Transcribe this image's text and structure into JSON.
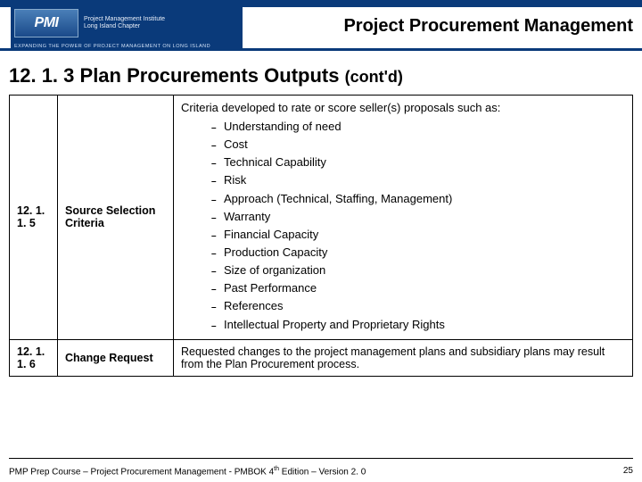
{
  "header": {
    "pmi_abbrev": "PMI",
    "org_line1": "Project Management Institute",
    "org_line2": "Long Island Chapter",
    "tagline": "EXPANDING THE POWER OF PROJECT MANAGEMENT ON LONG ISLAND",
    "page_title": "Project Procurement Management",
    "brand_color": "#0a3a7a"
  },
  "section": {
    "number": "12. 1. 3",
    "title": "Plan Procurements Outputs",
    "contd": "(cont'd)"
  },
  "rows": [
    {
      "num": "12. 1. 1. 5",
      "name": "Source Selection Criteria",
      "intro": "Criteria developed to rate or score seller(s) proposals such as:",
      "criteria": [
        "Understanding of need",
        "Cost",
        "Technical Capability",
        "Risk",
        "Approach (Technical, Staffing, Management)",
        "Warranty",
        "Financial Capacity",
        "Production Capacity",
        "Size of organization",
        "Past Performance",
        "References",
        "Intellectual Property and Proprietary Rights"
      ]
    },
    {
      "num": "12. 1. 1. 6",
      "name": "Change Request",
      "desc": "Requested changes to the project management plans and subsidiary plans may result from the Plan Procurement process."
    }
  ],
  "footer": {
    "left_pre": "PMP Prep Course – Project Procurement Management - PMBOK 4",
    "left_sup": "th",
    "left_post": " Edition – Version 2. 0",
    "page_num": "25"
  }
}
